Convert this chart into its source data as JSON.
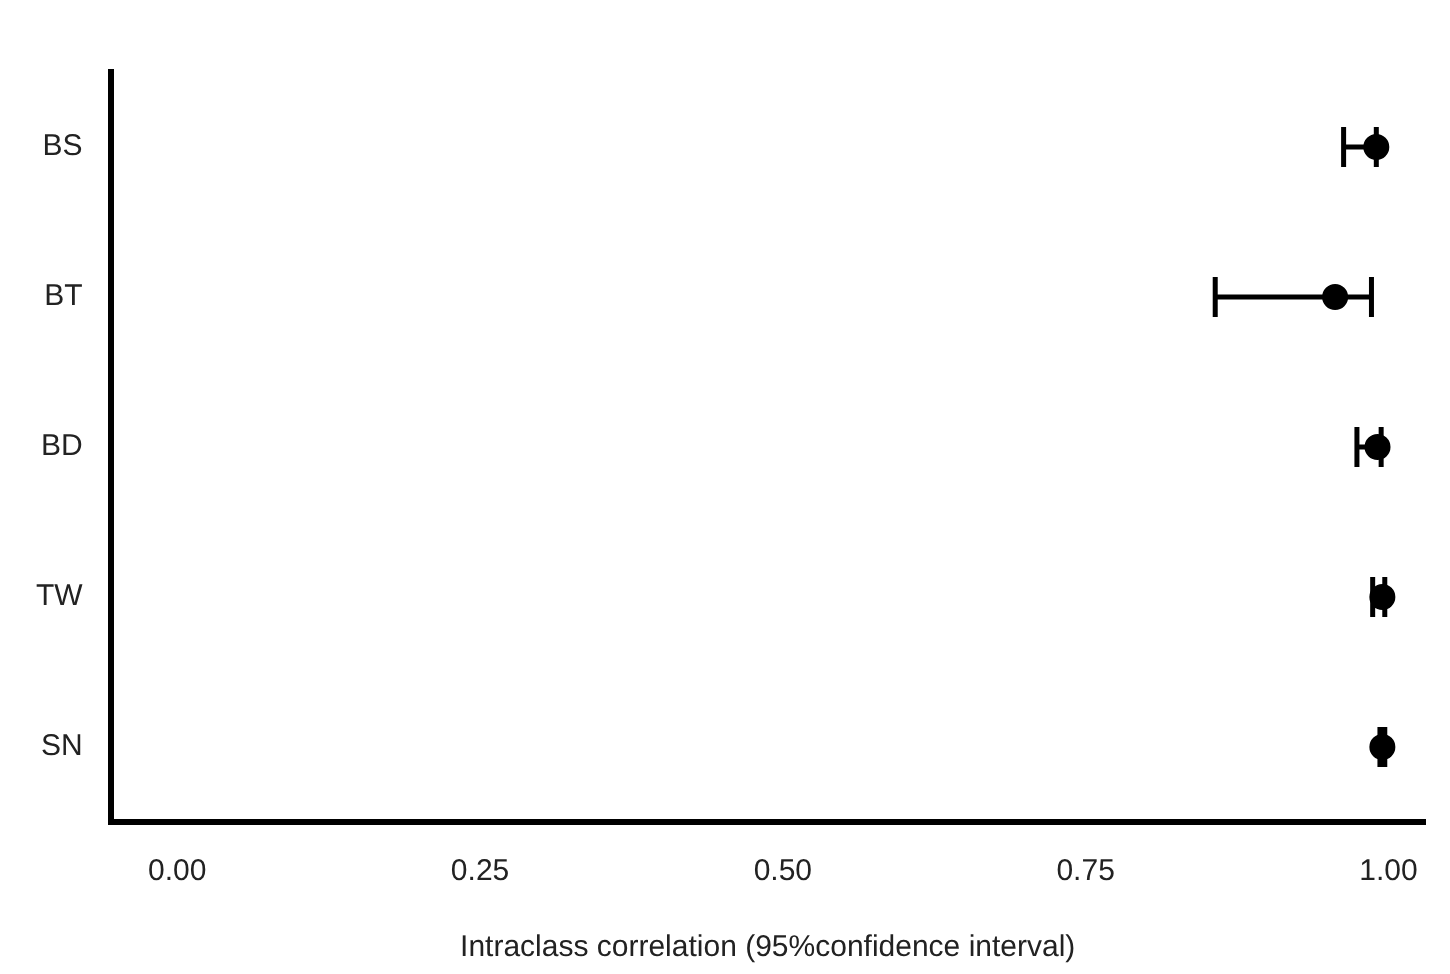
{
  "chart_data": {
    "type": "scatter",
    "orientation": "horizontal",
    "xlabel": "Intraclass correlation (95%confidence interval)",
    "categories": [
      "BS",
      "BT",
      "BD",
      "TW",
      "SN"
    ],
    "values": [
      0.99,
      0.956,
      0.991,
      0.995,
      0.995
    ],
    "errors": [
      [
        0.963,
        0.99
      ],
      [
        0.857,
        0.986
      ],
      [
        0.974,
        0.994
      ],
      [
        0.987,
        0.997
      ],
      [
        0.993,
        0.997
      ]
    ],
    "color": "#000000",
    "marker": "circle",
    "xlim": [
      -0.055,
      1.03
    ],
    "xticks": [
      {
        "value": 0,
        "label": "0.00"
      },
      {
        "value": 0.25,
        "label": "0.25"
      },
      {
        "value": 0.5,
        "label": "0.50"
      },
      {
        "value": 0.75,
        "label": "0.75"
      },
      {
        "value": 1,
        "label": "1.00"
      }
    ],
    "grid": false,
    "legend": false
  }
}
